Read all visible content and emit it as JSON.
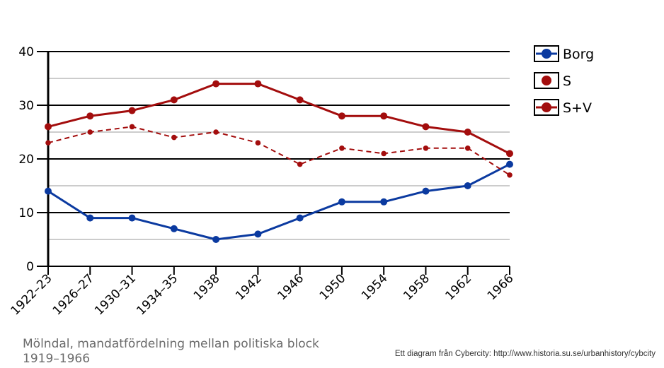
{
  "chart_data": {
    "type": "line",
    "categories": [
      "1922–23",
      "1926–27",
      "1930–31",
      "1934–35",
      "1938",
      "1942",
      "1946",
      "1950",
      "1954",
      "1958",
      "1962",
      "1966"
    ],
    "series": [
      {
        "name": "Borg",
        "values": [
          14,
          9,
          9,
          7,
          5,
          6,
          9,
          12,
          12,
          14,
          15,
          19
        ],
        "color": "#0b3aa0",
        "style": "solid"
      },
      {
        "name": "S",
        "values": [
          23,
          25,
          26,
          24,
          25,
          23,
          19,
          22,
          21,
          22,
          22,
          17
        ],
        "color": "#a30d0d",
        "style": "dashed"
      },
      {
        "name": "S+V",
        "values": [
          26,
          28,
          29,
          31,
          34,
          34,
          31,
          28,
          28,
          26,
          25,
          21
        ],
        "color": "#a30d0d",
        "style": "solid"
      }
    ],
    "ylim": [
      0,
      40
    ],
    "yticks": [
      0,
      10,
      20,
      30,
      40
    ],
    "grid": true,
    "legend": "right",
    "caption": "Mölndal, mandatfördelning mellan politiska block 1919–1966",
    "credit": "Ett diagram från Cybercity: http://www.historia.su.se/urbanhistory/cybcity"
  }
}
